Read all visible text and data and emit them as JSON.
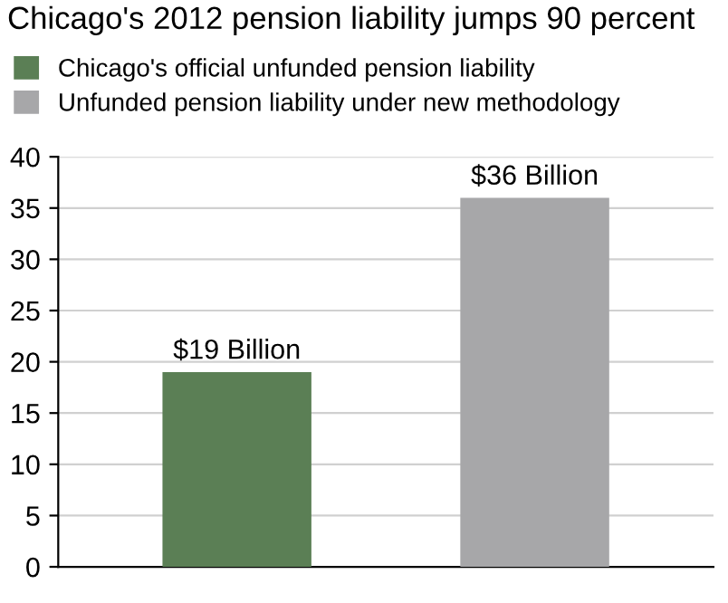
{
  "chart_data": {
    "type": "bar",
    "title": "Chicago's 2012 pension liability jumps 90 percent",
    "categories": [
      null,
      null
    ],
    "series": [
      {
        "name": "Chicago's official unfunded pension liability",
        "color": "#5b7f55",
        "values": [
          19,
          null
        ],
        "value_labels": [
          "$19 Billion",
          null
        ]
      },
      {
        "name": "Unfunded pension liability under new methodology",
        "color": "#a7a7a9",
        "values": [
          null,
          36
        ],
        "value_labels": [
          null,
          "$36 Billion"
        ]
      }
    ],
    "ylim": [
      0,
      40
    ],
    "yticks": [
      0,
      5,
      10,
      15,
      20,
      25,
      30,
      35,
      40
    ],
    "grid": "y",
    "legend": "top left"
  }
}
